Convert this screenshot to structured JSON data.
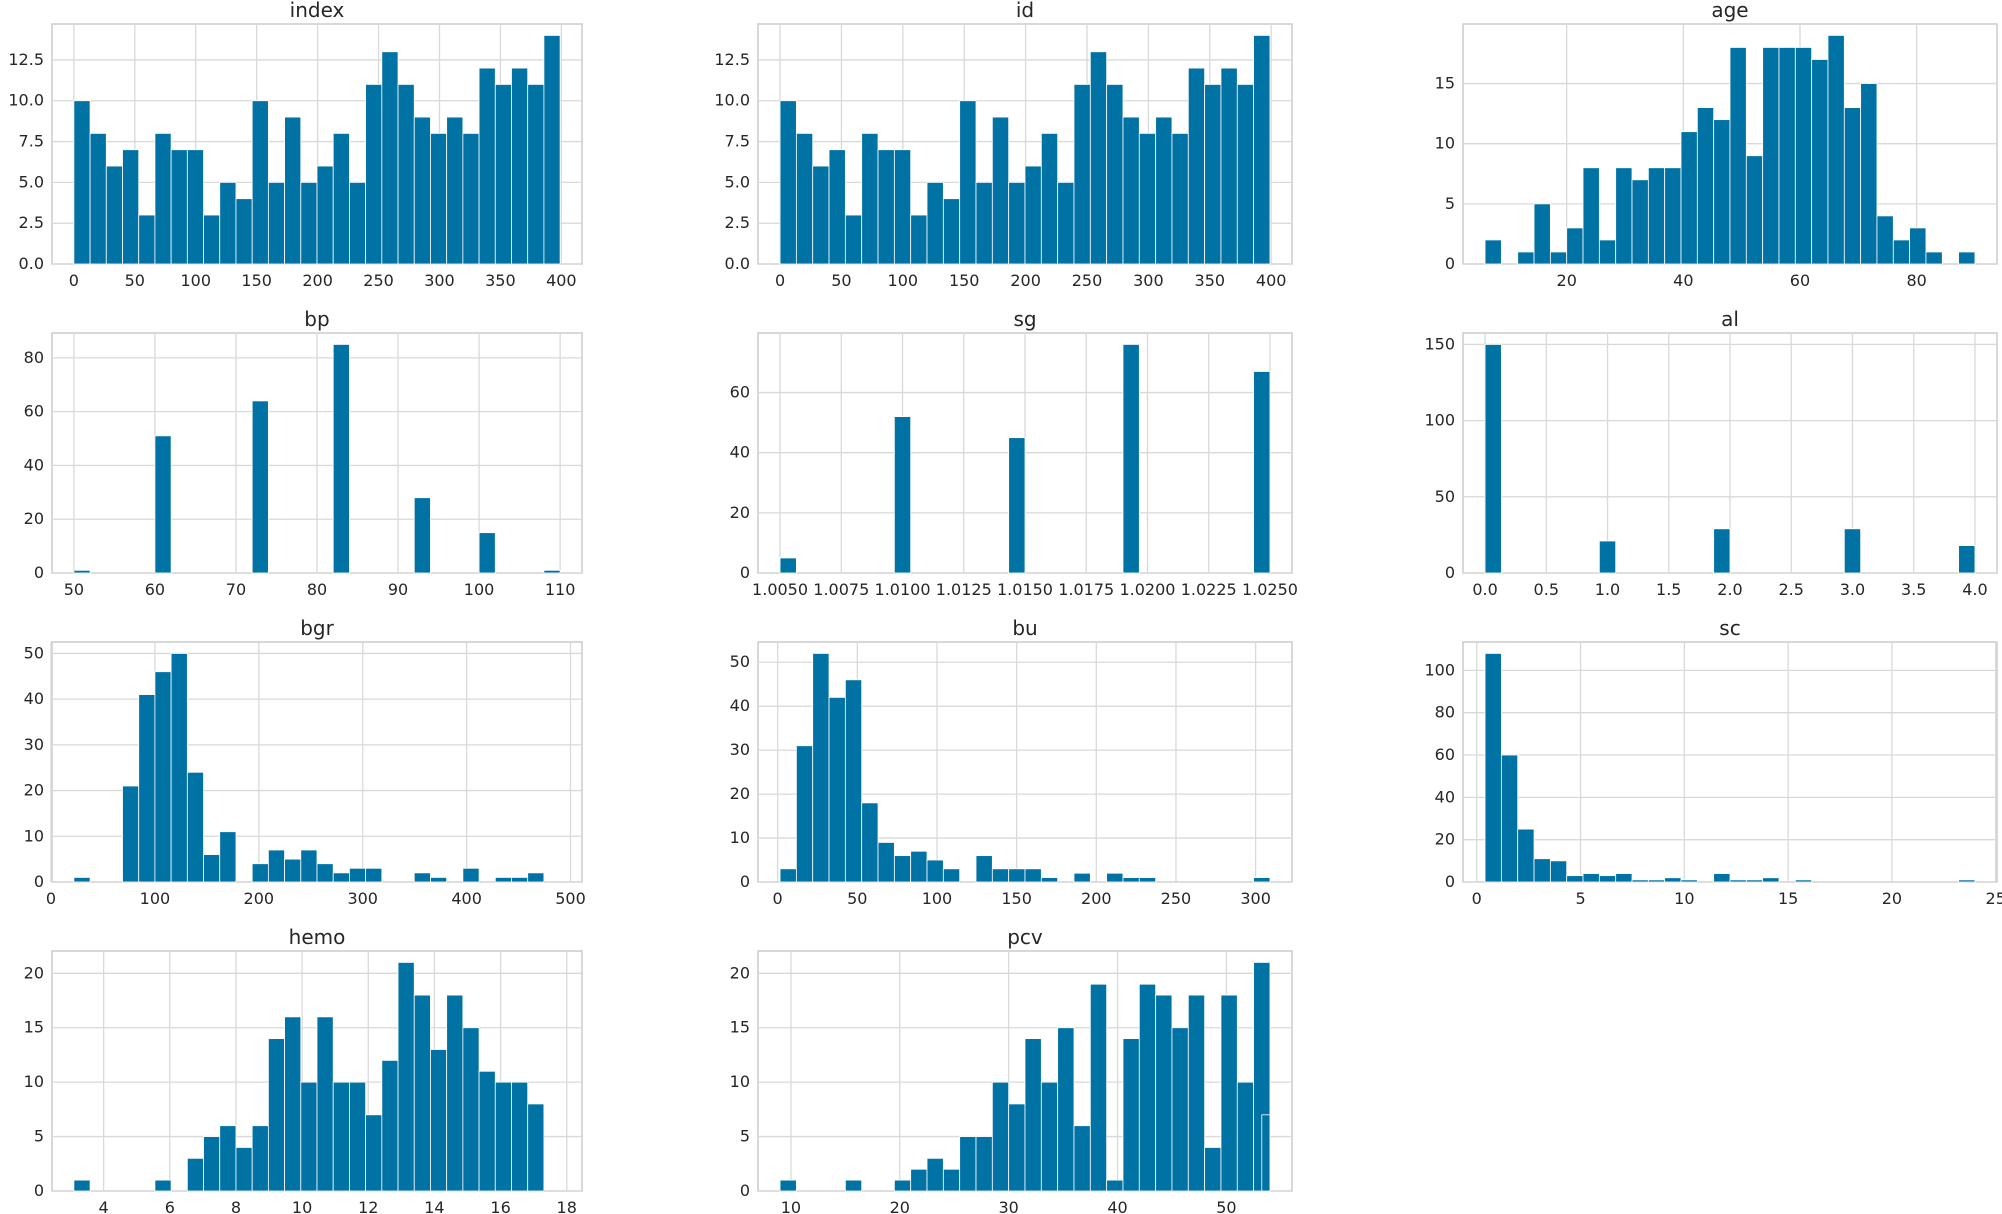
{
  "figure": {
    "bar_color": "#0072a4",
    "grid": true
  },
  "chart_data": [
    {
      "type": "bar",
      "title": "index",
      "bins": 30,
      "x_range": [
        0,
        399
      ],
      "values": [
        10,
        8,
        6,
        7,
        3,
        8,
        7,
        7,
        3,
        5,
        4,
        10,
        5,
        9,
        5,
        6,
        8,
        5,
        11,
        13,
        11,
        9,
        8,
        9,
        8,
        12,
        11,
        12,
        11,
        14
      ],
      "xticks": [
        "0",
        "50",
        "100",
        "150",
        "200",
        "250",
        "300",
        "350",
        "400"
      ],
      "yticks": [
        "0.0",
        "2.5",
        "5.0",
        "7.5",
        "10.0",
        "12.5"
      ],
      "ylim": [
        0,
        14.7
      ]
    },
    {
      "type": "bar",
      "title": "id",
      "bins": 30,
      "x_range": [
        0,
        399
      ],
      "values": [
        10,
        8,
        6,
        7,
        3,
        8,
        7,
        7,
        3,
        5,
        4,
        10,
        5,
        9,
        5,
        6,
        8,
        5,
        11,
        13,
        11,
        9,
        8,
        9,
        8,
        12,
        11,
        12,
        11,
        14
      ],
      "xticks": [
        "0",
        "50",
        "100",
        "150",
        "200",
        "250",
        "300",
        "350",
        "400"
      ],
      "yticks": [
        "0.0",
        "2.5",
        "5.0",
        "7.5",
        "10.0",
        "12.5"
      ],
      "ylim": [
        0,
        14.7
      ]
    },
    {
      "type": "bar",
      "title": "age",
      "bins": 30,
      "x_range": [
        6,
        90
      ],
      "values": [
        2,
        0,
        1,
        5,
        1,
        3,
        8,
        2,
        8,
        7,
        8,
        8,
        11,
        13,
        12,
        18,
        9,
        18,
        18,
        18,
        17,
        19,
        13,
        15,
        4,
        2,
        3,
        1,
        0,
        1
      ],
      "xticks": [
        "20",
        "40",
        "60",
        "80"
      ],
      "xtick_values": [
        20,
        40,
        60,
        80
      ],
      "yticks": [
        "0",
        "5",
        "10",
        "15"
      ],
      "ylim": [
        0,
        19.95
      ]
    },
    {
      "type": "bar",
      "title": "bp",
      "bins": 30,
      "x_range": [
        50,
        110
      ],
      "values": [
        1,
        0,
        0,
        0,
        0,
        51,
        0,
        0,
        0,
        0,
        0,
        64,
        0,
        0,
        0,
        0,
        85,
        0,
        0,
        0,
        0,
        28,
        0,
        0,
        0,
        15,
        0,
        0,
        0,
        1
      ],
      "xticks": [
        "50",
        "60",
        "70",
        "80",
        "90",
        "100",
        "110"
      ],
      "yticks": [
        "0",
        "20",
        "40",
        "60",
        "80"
      ],
      "ylim": [
        0,
        89.25
      ]
    },
    {
      "type": "bar",
      "title": "sg",
      "bins": 30,
      "x_range": [
        1.005,
        1.025
      ],
      "values": [
        5,
        0,
        0,
        0,
        0,
        0,
        0,
        52,
        0,
        0,
        0,
        0,
        0,
        0,
        45,
        0,
        0,
        0,
        0,
        0,
        0,
        76,
        0,
        0,
        0,
        0,
        0,
        0,
        0,
        67
      ],
      "xticks": [
        "1.0050",
        "1.0075",
        "1.0100",
        "1.0125",
        "1.0150",
        "1.0175",
        "1.0200",
        "1.0225",
        "1.0250"
      ],
      "yticks": [
        "0",
        "20",
        "40",
        "60"
      ],
      "ylim": [
        0,
        79.8
      ]
    },
    {
      "type": "bar",
      "title": "al",
      "bins": 30,
      "x_range": [
        0,
        4
      ],
      "values": [
        150,
        0,
        0,
        0,
        0,
        0,
        0,
        21,
        0,
        0,
        0,
        0,
        0,
        0,
        29,
        0,
        0,
        0,
        0,
        0,
        0,
        0,
        29,
        0,
        0,
        0,
        0,
        0,
        0,
        18
      ],
      "xticks": [
        "0.0",
        "0.5",
        "1.0",
        "1.5",
        "2.0",
        "2.5",
        "3.0",
        "3.5",
        "4.0"
      ],
      "yticks": [
        "0",
        "50",
        "100",
        "150"
      ],
      "ylim": [
        0,
        157.5
      ]
    },
    {
      "type": "bar",
      "title": "bgr",
      "bins": 30,
      "x_range": [
        22,
        490
      ],
      "values": [
        1,
        0,
        0,
        21,
        41,
        46,
        50,
        24,
        6,
        11,
        0,
        4,
        7,
        5,
        7,
        4,
        2,
        3,
        3,
        0,
        0,
        2,
        1,
        0,
        3,
        0,
        1,
        1,
        2,
        0
      ],
      "xticks": [
        "0",
        "100",
        "200",
        "300",
        "400",
        "500"
      ],
      "xtick_values": [
        0,
        100,
        200,
        300,
        400,
        500
      ],
      "yticks": [
        "0",
        "10",
        "20",
        "30",
        "40",
        "50"
      ],
      "ylim": [
        0,
        52.5
      ]
    },
    {
      "type": "bar",
      "title": "bu",
      "bins": 30,
      "x_range": [
        1.5,
        309
      ],
      "values": [
        3,
        31,
        52,
        42,
        46,
        18,
        9,
        6,
        7,
        5,
        3,
        0,
        6,
        3,
        3,
        3,
        1,
        0,
        2,
        0,
        2,
        1,
        1,
        0,
        0,
        0,
        0,
        0,
        0,
        1
      ],
      "xticks": [
        "0",
        "50",
        "100",
        "150",
        "200",
        "250",
        "300"
      ],
      "xtick_values": [
        0,
        50,
        100,
        150,
        200,
        250,
        300
      ],
      "yticks": [
        "0",
        "10",
        "20",
        "30",
        "40",
        "50"
      ],
      "ylim": [
        0,
        54.6
      ]
    },
    {
      "type": "bar",
      "title": "sc",
      "bins": 30,
      "x_range": [
        0.4,
        24
      ],
      "values": [
        108,
        60,
        25,
        11,
        10,
        3,
        4,
        3,
        4,
        1,
        1,
        2,
        1,
        0,
        4,
        1,
        1,
        2,
        0,
        1,
        0,
        0,
        0,
        0,
        0,
        0,
        0,
        0,
        0,
        1
      ],
      "xticks": [
        "0",
        "5",
        "10",
        "15",
        "20",
        "25"
      ],
      "xtick_values": [
        0,
        5,
        10,
        15,
        20,
        25
      ],
      "yticks": [
        "0",
        "20",
        "40",
        "60",
        "80",
        "100"
      ],
      "ylim": [
        0,
        113.4
      ]
    },
    {
      "type": "bar",
      "title": "hemo",
      "bins": 30,
      "x_range": [
        3.1,
        17.8
      ],
      "values": [
        1,
        0,
        0,
        0,
        0,
        1,
        0,
        3,
        5,
        6,
        4,
        6,
        14,
        16,
        10,
        16,
        10,
        10,
        7,
        12,
        21,
        18,
        13,
        18,
        15,
        11,
        10,
        10,
        8,
        0
      ],
      "xticks": [
        "4",
        "6",
        "8",
        "10",
        "12",
        "14",
        "16",
        "18"
      ],
      "xtick_values": [
        4,
        6,
        8,
        10,
        12,
        14,
        16,
        18
      ],
      "yticks": [
        "0",
        "5",
        "10",
        "15",
        "20"
      ],
      "ylim": [
        0,
        22.05
      ]
    },
    {
      "type": "bar",
      "title": "pcv",
      "bins": 30,
      "x_range": [
        9,
        54
      ],
      "values": [
        1,
        0,
        0,
        0,
        1,
        0,
        0,
        1,
        2,
        3,
        2,
        5,
        5,
        10,
        8,
        14,
        10,
        15,
        6,
        19,
        1,
        14,
        19,
        18,
        15,
        18,
        4,
        18,
        10,
        21
      ],
      "extra_last": 7,
      "xticks": [
        "10",
        "20",
        "30",
        "40",
        "50"
      ],
      "xtick_values": [
        10,
        20,
        30,
        40,
        50
      ],
      "yticks": [
        "0",
        "5",
        "10",
        "15",
        "20"
      ],
      "ylim": [
        0,
        22.05
      ]
    }
  ]
}
